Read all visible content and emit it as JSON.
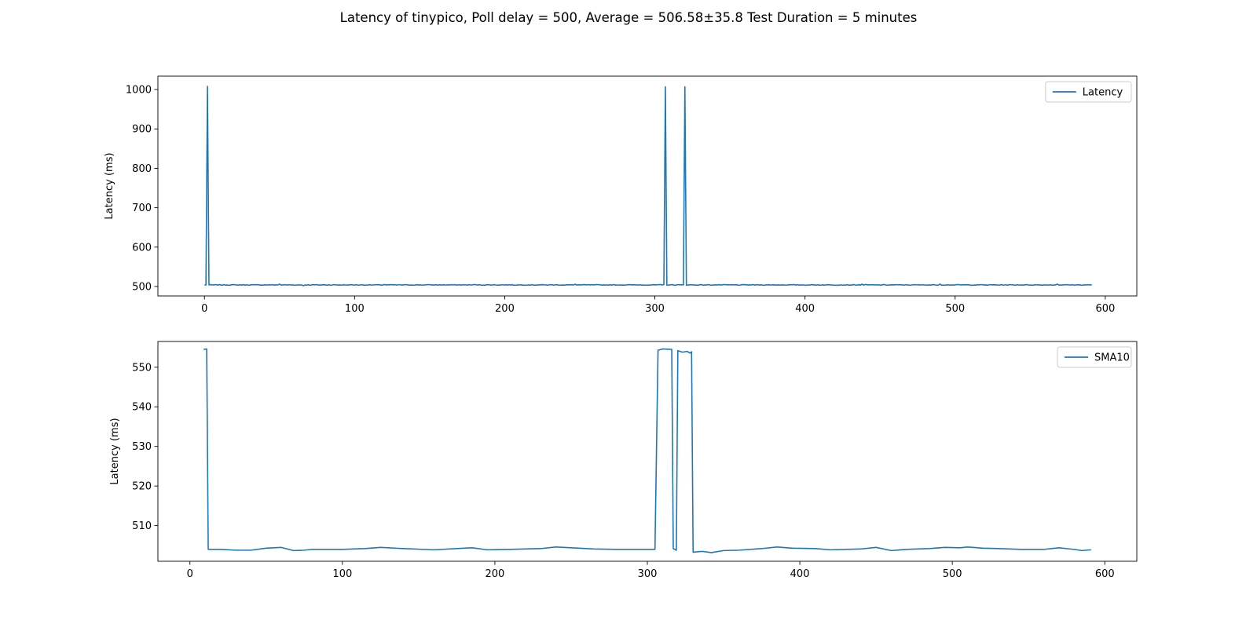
{
  "figure": {
    "suptitle": "Latency of tinypico, Poll delay = 500, Average = 506.58±35.8 Test Duration = 5 minutes"
  },
  "chart_data": [
    {
      "type": "line",
      "title": "",
      "xlabel": "",
      "ylabel": "Latency (ms)",
      "xlim": [
        -31,
        621
      ],
      "ylim": [
        476,
        1034
      ],
      "xticks": [
        0,
        100,
        200,
        300,
        400,
        500,
        600
      ],
      "yticks": [
        500,
        600,
        700,
        800,
        900,
        1000
      ],
      "grid": false,
      "legend_position": "upper right",
      "color": "#1f77b4",
      "series": [
        {
          "name": "Latency",
          "baseline": 504,
          "x_range": [
            0,
            591
          ],
          "spikes": [
            {
              "x": 2,
              "y": 1008
            },
            {
              "x": 307,
              "y": 1007
            },
            {
              "x": 320,
              "y": 1007
            }
          ],
          "ripples": [
            {
              "x": 50,
              "y": 506
            },
            {
              "x": 66,
              "y": 502
            },
            {
              "x": 120,
              "y": 505
            },
            {
              "x": 180,
              "y": 505
            },
            {
              "x": 247,
              "y": 506
            },
            {
              "x": 438,
              "y": 506
            },
            {
              "x": 490,
              "y": 506
            },
            {
              "x": 568,
              "y": 506
            }
          ]
        }
      ]
    },
    {
      "type": "line",
      "title": "",
      "xlabel": "",
      "ylabel": "Latency (ms)",
      "xlim": [
        -21,
        621
      ],
      "ylim": [
        501,
        556.5
      ],
      "xticks": [
        0,
        100,
        200,
        300,
        400,
        500,
        600
      ],
      "yticks": [
        510,
        520,
        530,
        540,
        550
      ],
      "grid": false,
      "legend_position": "upper right",
      "color": "#1f77b4",
      "series": [
        {
          "name": "SMA10",
          "points": [
            [
              9,
              554.5
            ],
            [
              11,
              554.6
            ],
            [
              12,
              504
            ],
            [
              20,
              504
            ],
            [
              30,
              503.8
            ],
            [
              40,
              503.8
            ],
            [
              50,
              504.3
            ],
            [
              60,
              504.5
            ],
            [
              68,
              503.7
            ],
            [
              75,
              503.8
            ],
            [
              80,
              504
            ],
            [
              100,
              504
            ],
            [
              115,
              504.2
            ],
            [
              125,
              504.5
            ],
            [
              140,
              504.2
            ],
            [
              160,
              503.9
            ],
            [
              175,
              504.2
            ],
            [
              185,
              504.4
            ],
            [
              195,
              503.9
            ],
            [
              210,
              504
            ],
            [
              230,
              504.2
            ],
            [
              240,
              504.6
            ],
            [
              255,
              504.3
            ],
            [
              265,
              504.1
            ],
            [
              280,
              504
            ],
            [
              305,
              504
            ],
            [
              307,
              554.3
            ],
            [
              310,
              554.6
            ],
            [
              316,
              554.5
            ],
            [
              317,
              504.2
            ],
            [
              319,
              503.8
            ],
            [
              320,
              554.2
            ],
            [
              323,
              553.8
            ],
            [
              326,
              554
            ],
            [
              328,
              553.6
            ],
            [
              329,
              553.9
            ],
            [
              330,
              503.3
            ],
            [
              336,
              503.5
            ],
            [
              342,
              503.2
            ],
            [
              350,
              503.7
            ],
            [
              360,
              503.8
            ],
            [
              375,
              504.2
            ],
            [
              385,
              504.6
            ],
            [
              395,
              504.3
            ],
            [
              410,
              504.2
            ],
            [
              420,
              503.9
            ],
            [
              440,
              504.1
            ],
            [
              450,
              504.5
            ],
            [
              460,
              503.7
            ],
            [
              470,
              504
            ],
            [
              485,
              504.2
            ],
            [
              495,
              504.5
            ],
            [
              505,
              504.4
            ],
            [
              510,
              504.6
            ],
            [
              520,
              504.3
            ],
            [
              530,
              504.2
            ],
            [
              545,
              504
            ],
            [
              560,
              504
            ],
            [
              570,
              504.4
            ],
            [
              575,
              504.2
            ],
            [
              580,
              504
            ],
            [
              585,
              503.7
            ],
            [
              591,
              503.9
            ]
          ]
        }
      ]
    }
  ]
}
